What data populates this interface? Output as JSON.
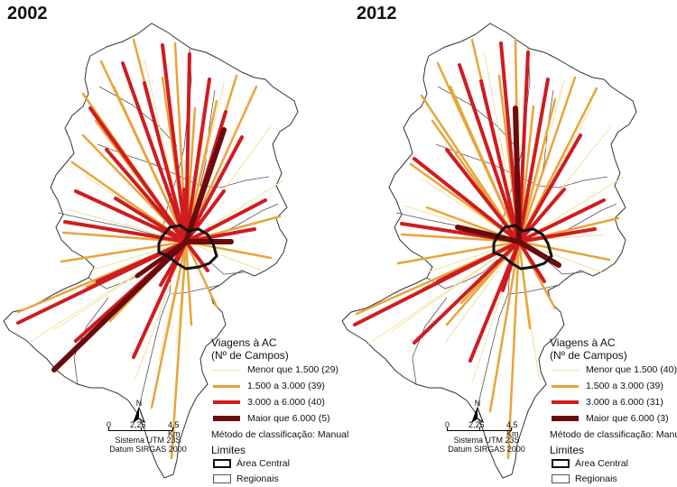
{
  "maps": [
    {
      "year": "2002",
      "legend": {
        "title_line1": "Viagens à AC",
        "title_line2": "(Nº de Campos)",
        "classes": [
          {
            "label": "Menor que 1.500 (29)",
            "color": "#f6e9a6",
            "width": 1
          },
          {
            "label": "1.500 a 3.000 (39)",
            "color": "#e9a93c",
            "width": 2.5
          },
          {
            "label": "3.000 a 6.000 (40)",
            "color": "#d1181c",
            "width": 4
          },
          {
            "label": "Maior que 6.000 (5)",
            "color": "#6b0b0b",
            "width": 6
          }
        ],
        "method": "Método de classificação: Manual",
        "limits_title": "Limites",
        "limits": [
          {
            "label": "Área Central",
            "style": "bold"
          },
          {
            "label": "Regionais",
            "style": "thin"
          }
        ]
      },
      "north": "N",
      "scale": {
        "labels": [
          "0",
          "2,25",
          "4,5 Km"
        ]
      },
      "srs_line1": "Sistema UTM 23S",
      "srs_line2": "Datum SIRGAS 2000"
    },
    {
      "year": "2012",
      "legend": {
        "title_line1": "Viagens à AC",
        "title_line2": "(Nº de Campos)",
        "classes": [
          {
            "label": "Menor que 1.500 (40)",
            "color": "#f6e9a6",
            "width": 1
          },
          {
            "label": "1.500 a 3.000 (39)",
            "color": "#e9a93c",
            "width": 2.5
          },
          {
            "label": "3.000 a 6.000 (31)",
            "color": "#d1181c",
            "width": 4
          },
          {
            "label": "Maior que 6.000 (3)",
            "color": "#6b0b0b",
            "width": 6
          }
        ],
        "method": "Método de classificação: Manual",
        "limits_title": "Limites",
        "limits": [
          {
            "label": "Área Central",
            "style": "bold"
          },
          {
            "label": "Regionais",
            "style": "thin"
          }
        ]
      },
      "north": "N",
      "scale": {
        "labels": [
          "0",
          "2,25",
          "4,5 Km"
        ]
      },
      "srs_line1": "Sistema UTM 23S",
      "srs_line2": "Datum SIRGAS 2000"
    }
  ]
}
